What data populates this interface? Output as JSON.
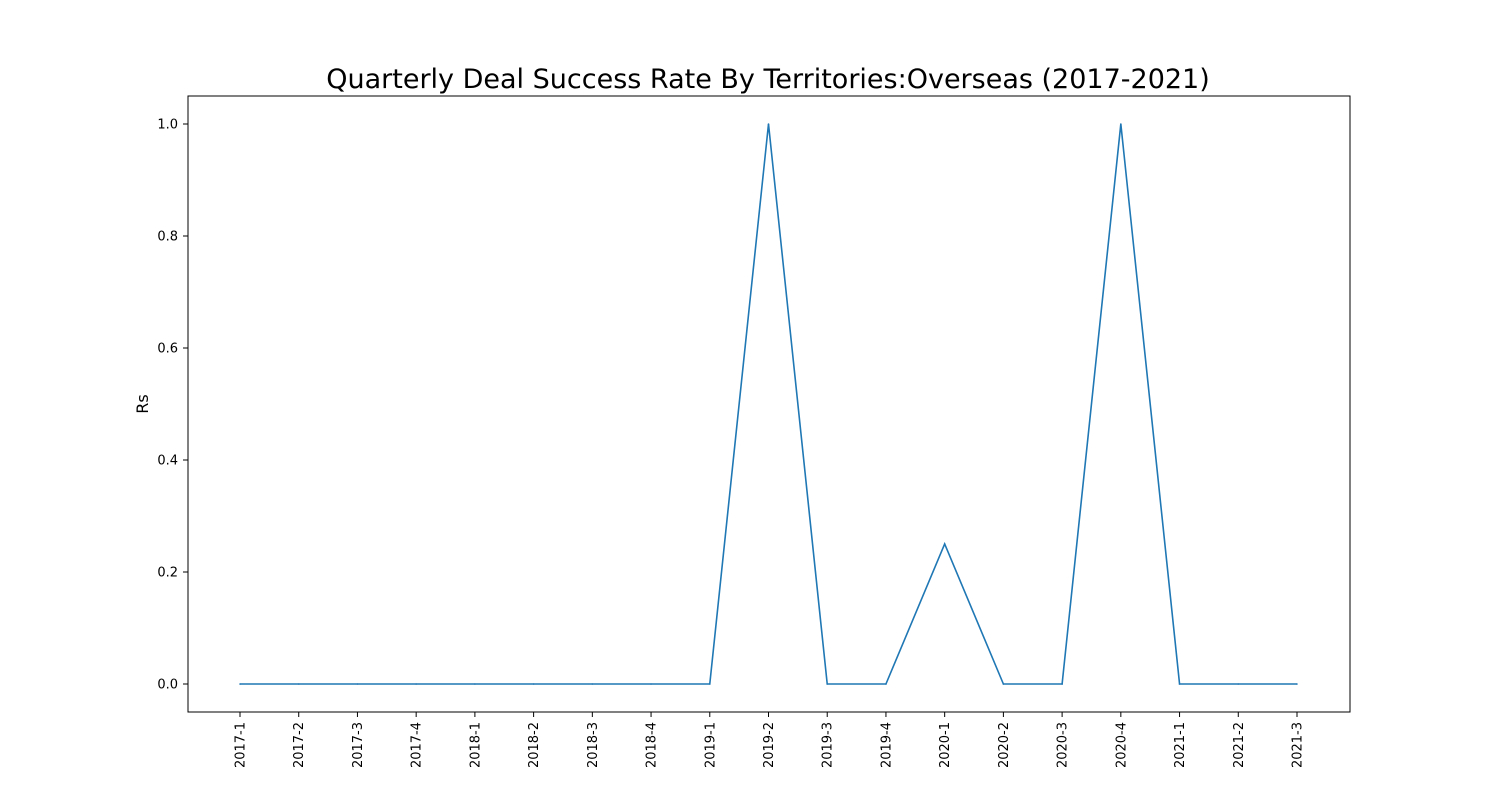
{
  "chart_data": {
    "type": "line",
    "title": "Quarterly Deal Success Rate By Territories:Overseas (2017-2021)",
    "xlabel": "",
    "ylabel": "Rs",
    "categories": [
      "2017-1",
      "2017-2",
      "2017-3",
      "2017-4",
      "2018-1",
      "2018-2",
      "2018-3",
      "2018-4",
      "2019-1",
      "2019-2",
      "2019-3",
      "2019-4",
      "2020-1",
      "2020-2",
      "2020-3",
      "2020-4",
      "2021-1",
      "2021-2",
      "2021-3"
    ],
    "series": [
      {
        "values": [
          0,
          0,
          0,
          0,
          0,
          0,
          0,
          0,
          0,
          1.0,
          0,
          0,
          0.25,
          0,
          0,
          1.0,
          0,
          0,
          0
        ],
        "color": "#1f77b4"
      }
    ],
    "ylim": [
      -0.05,
      1.05
    ],
    "yticks": [
      0.0,
      0.2,
      0.4,
      0.6,
      0.8,
      1.0
    ],
    "ytick_labels": [
      "0.0",
      "0.2",
      "0.4",
      "0.6",
      "0.8",
      "1.0"
    ],
    "grid": false,
    "legend": "none"
  }
}
